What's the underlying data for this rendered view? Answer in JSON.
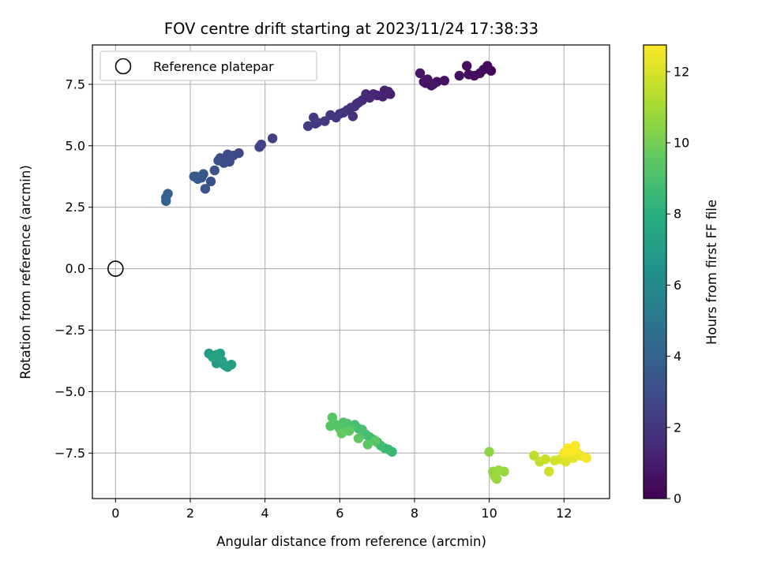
{
  "chart_data": {
    "type": "scatter",
    "title": "FOV centre drift starting at 2023/11/24 17:38:33",
    "xlabel": "Angular distance from reference (arcmin)",
    "ylabel": "Rotation from reference (arcmin)",
    "xlim": [
      -0.62,
      13.22
    ],
    "ylim": [
      -9.35,
      9.1
    ],
    "x_ticks": [
      0,
      2,
      4,
      6,
      8,
      10,
      12
    ],
    "y_ticks": [
      -7.5,
      -5.0,
      -2.5,
      0.0,
      2.5,
      5.0,
      7.5
    ],
    "y_tick_labels": [
      "−7.5",
      "−5.0",
      "−2.5",
      "0.0",
      "2.5",
      "5.0",
      "7.5"
    ],
    "grid": true,
    "colormap": "viridis",
    "colorbar": {
      "label": "Hours from first FF file",
      "range": [
        0,
        12.75
      ],
      "ticks": [
        0,
        2,
        4,
        6,
        8,
        10,
        12
      ]
    },
    "legend": {
      "position": "top-left",
      "entries": [
        "Reference platepar"
      ]
    },
    "reference_point": {
      "x": 0,
      "y": 0,
      "label": "Reference platepar"
    },
    "series": [
      {
        "color_by": "hours",
        "x": [
          10.05,
          9.95,
          9.85,
          9.75,
          9.6,
          9.4,
          9.45,
          9.2,
          8.8,
          8.6,
          8.45,
          8.35,
          8.3,
          8.25,
          8.15,
          8.5,
          7.35,
          7.3,
          7.2,
          7.15,
          7.0,
          6.9,
          6.8,
          6.7,
          6.6,
          6.5,
          6.45,
          6.4,
          6.35,
          6.3,
          6.2,
          6.1,
          6.0,
          5.9,
          5.75,
          5.6,
          5.4,
          5.3,
          5.35,
          5.15,
          4.2,
          3.9,
          3.85,
          3.3,
          3.15,
          3.05,
          3.0,
          2.95,
          2.9,
          2.8,
          2.75,
          2.65,
          2.55,
          2.4,
          2.35,
          2.3,
          2.2,
          2.15,
          2.1,
          1.4,
          1.35,
          1.35,
          2.5,
          2.6,
          2.7,
          2.8,
          2.75,
          2.9,
          3.0,
          3.1,
          2.95,
          2.85,
          2.7,
          2.6,
          7.4,
          7.3,
          7.2,
          7.1,
          7.0,
          6.9,
          6.8,
          6.7,
          6.6,
          6.5,
          6.4,
          6.3,
          6.2,
          6.1,
          6.0,
          5.9,
          5.8,
          5.75,
          6.95,
          6.75,
          6.5,
          6.25,
          6.05,
          10.0,
          10.1,
          10.2,
          10.4,
          10.15,
          10.25,
          11.2,
          11.35,
          11.5,
          11.6,
          11.75,
          11.9,
          12.05,
          12.15,
          12.25,
          12.35,
          12.45,
          12.6,
          12.0,
          12.3,
          12.1,
          12.2
        ],
        "y": [
          8.05,
          8.25,
          8.1,
          7.95,
          7.85,
          8.25,
          7.9,
          7.85,
          7.65,
          7.6,
          7.45,
          7.7,
          7.55,
          7.6,
          7.95,
          7.5,
          7.1,
          7.2,
          7.25,
          7.0,
          7.05,
          7.1,
          6.95,
          7.1,
          6.85,
          6.75,
          6.7,
          6.6,
          6.2,
          6.55,
          6.45,
          6.35,
          6.3,
          6.15,
          6.25,
          6.0,
          5.95,
          6.15,
          5.9,
          5.8,
          5.3,
          5.05,
          4.95,
          4.7,
          4.6,
          4.35,
          4.65,
          4.4,
          4.3,
          4.5,
          4.4,
          4.0,
          3.55,
          3.25,
          3.85,
          3.7,
          3.65,
          3.75,
          3.75,
          3.05,
          2.9,
          2.75,
          -3.45,
          -3.55,
          -3.85,
          -3.45,
          -3.7,
          -3.9,
          -4.0,
          -3.9,
          -3.95,
          -3.75,
          -3.5,
          -3.6,
          -7.45,
          -7.35,
          -7.3,
          -7.2,
          -7.05,
          -6.95,
          -6.85,
          -6.75,
          -6.55,
          -6.5,
          -6.35,
          -6.45,
          -6.3,
          -6.25,
          -6.5,
          -6.35,
          -6.05,
          -6.4,
          -7.0,
          -7.15,
          -6.9,
          -6.6,
          -6.7,
          -7.45,
          -8.25,
          -8.55,
          -8.25,
          -8.45,
          -8.2,
          -7.6,
          -7.85,
          -7.75,
          -8.25,
          -7.8,
          -7.75,
          -7.85,
          -7.6,
          -7.7,
          -7.5,
          -7.6,
          -7.7,
          -7.5,
          -7.2,
          -7.3,
          -7.45
        ],
        "hours": [
          0.1,
          0.2,
          0.25,
          0.3,
          0.35,
          0.4,
          0.45,
          0.5,
          0.55,
          0.6,
          0.62,
          0.64,
          0.66,
          0.68,
          0.7,
          0.72,
          1.1,
          1.15,
          1.2,
          1.25,
          1.3,
          1.35,
          1.4,
          1.45,
          1.5,
          1.55,
          1.6,
          1.65,
          1.7,
          1.75,
          1.8,
          1.85,
          1.9,
          1.95,
          2.0,
          2.05,
          2.1,
          2.15,
          2.2,
          2.25,
          2.4,
          2.5,
          2.55,
          2.7,
          2.8,
          2.85,
          2.9,
          2.95,
          3.0,
          3.05,
          3.1,
          3.2,
          3.3,
          3.35,
          3.4,
          3.45,
          3.5,
          3.55,
          3.6,
          3.9,
          4.0,
          4.1,
          6.8,
          6.85,
          6.9,
          6.95,
          7.0,
          7.05,
          7.1,
          7.15,
          7.2,
          7.25,
          7.3,
          7.35,
          8.5,
          8.55,
          8.6,
          8.65,
          8.7,
          8.75,
          8.8,
          8.85,
          8.9,
          8.95,
          9.0,
          9.05,
          9.1,
          9.15,
          9.2,
          9.25,
          9.3,
          9.35,
          9.4,
          9.45,
          9.5,
          9.55,
          9.6,
          10.5,
          10.6,
          10.65,
          10.7,
          10.75,
          10.8,
          11.5,
          11.6,
          11.7,
          11.8,
          11.9,
          12.0,
          12.1,
          12.2,
          12.3,
          12.4,
          12.5,
          12.6,
          12.65,
          12.7,
          12.72,
          12.75
        ]
      }
    ]
  }
}
